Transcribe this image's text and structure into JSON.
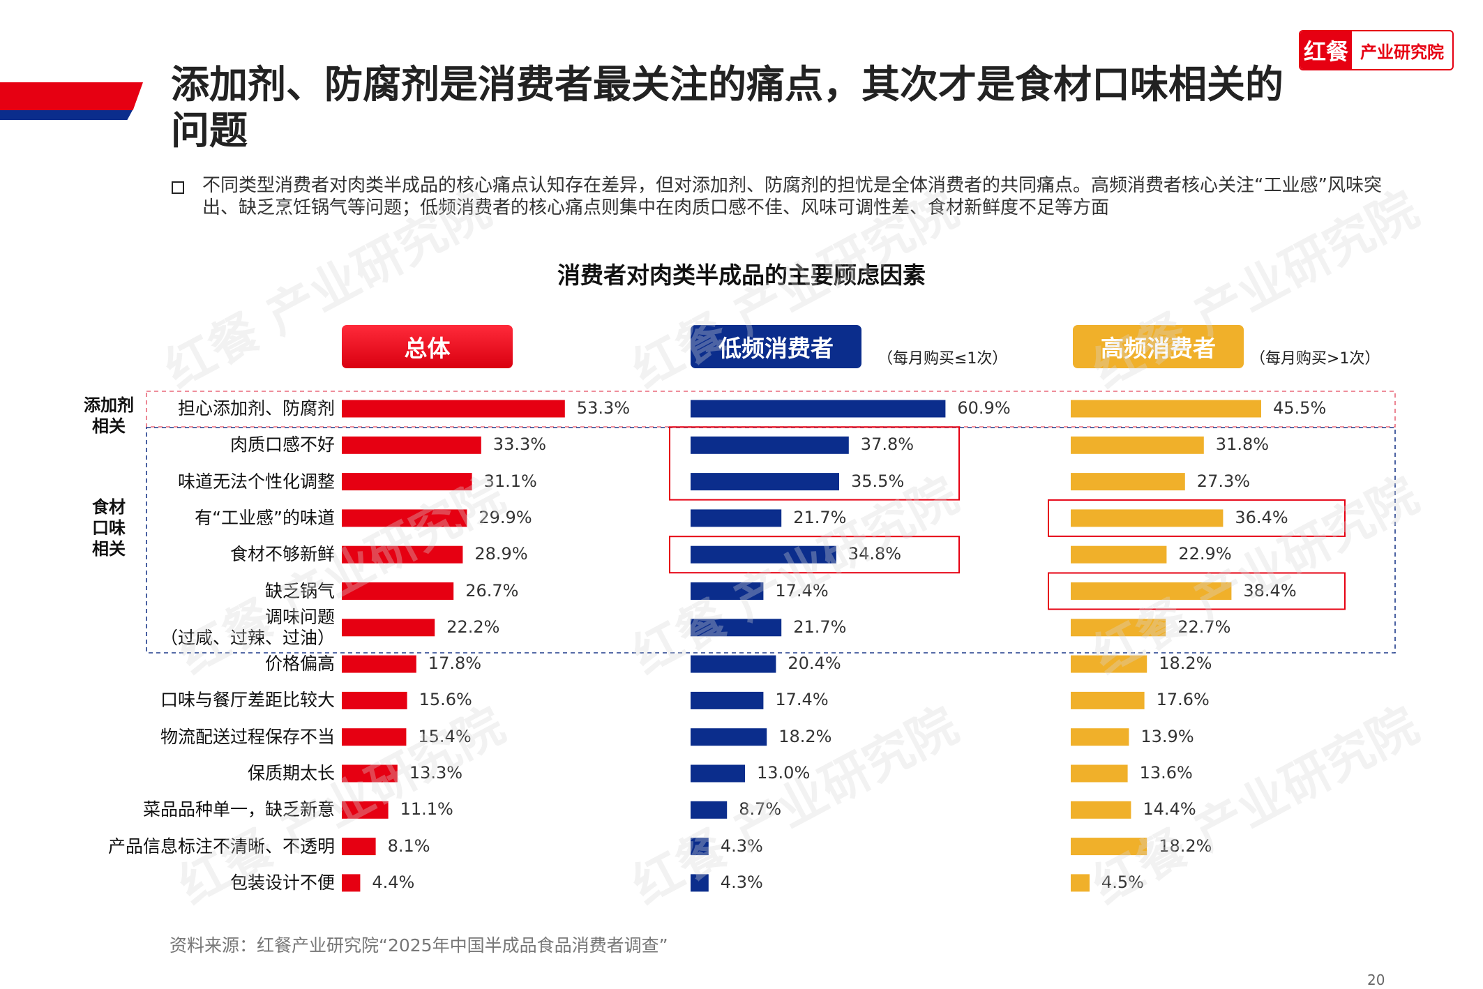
{
  "title": "添加剂、防腐剂是消费者最关注的痛点，其次才是食材口味相关的问题",
  "logo": {
    "mark": "红餐",
    "text": "产业研究院"
  },
  "note": "不同类型消费者对肉类半成品的核心痛点认知存在差异，但对添加剂、防腐剂的担忧是全体消费者的共同痛点。高频消费者核心关注“工业感”风味突出、缺乏烹饪锅气等问题；低频消费者的核心痛点则集中在肉质口感不佳、风味可调性差、食材新鲜度不足等方面",
  "groups": {
    "additive": "添加剂\n相关",
    "ingredient": "食材\n口味\n相关"
  },
  "source": "资料来源：红餐产业研究院“2025年中国半成品食品消费者调查”",
  "page_number": "20",
  "watermark": "红餐 产业研究院",
  "colors": {
    "total": "#e60012",
    "low": "#0b2d8c",
    "high": "#f0b02a",
    "highlight": "#e60012",
    "dash_blue": "#1d3a8a"
  },
  "chart_data": {
    "type": "bar",
    "title": "消费者对肉类半成品的主要顾虑因素",
    "categories": [
      "担心添加剂、防腐剂",
      "肉质口感不好",
      "味道无法个性化调整",
      "有“工业感”的味道",
      "食材不够新鲜",
      "缺乏锅气",
      "调味问题\n（过咸、过辣、过油）",
      "价格偏高",
      "口味与餐厅差距比较大",
      "物流配送过程保存不当",
      "保质期太长",
      "菜品品种单一，缺乏新意",
      "产品信息标注不清晰、不透明",
      "包装设计不便"
    ],
    "series": [
      {
        "name": "总体",
        "note": "",
        "values": [
          53.3,
          33.3,
          31.1,
          29.9,
          28.9,
          26.7,
          22.2,
          17.8,
          15.6,
          15.4,
          13.3,
          11.1,
          8.1,
          4.4
        ]
      },
      {
        "name": "低频消费者",
        "note": "（每月购买≤1次）",
        "values": [
          60.9,
          37.8,
          35.5,
          21.7,
          34.8,
          17.4,
          21.7,
          20.4,
          17.4,
          18.2,
          13.0,
          8.7,
          4.3,
          4.3
        ]
      },
      {
        "name": "高频消费者",
        "note": "（每月购买>1次）",
        "values": [
          45.5,
          31.8,
          27.3,
          36.4,
          22.9,
          38.4,
          22.7,
          18.2,
          17.6,
          13.9,
          13.6,
          14.4,
          18.2,
          4.5
        ]
      }
    ],
    "unit": "%",
    "highlights": [
      {
        "series": 1,
        "rows": [
          1,
          2
        ]
      },
      {
        "series": 1,
        "rows": [
          4
        ]
      },
      {
        "series": 2,
        "rows": [
          3
        ]
      },
      {
        "series": 2,
        "rows": [
          5
        ]
      }
    ]
  }
}
